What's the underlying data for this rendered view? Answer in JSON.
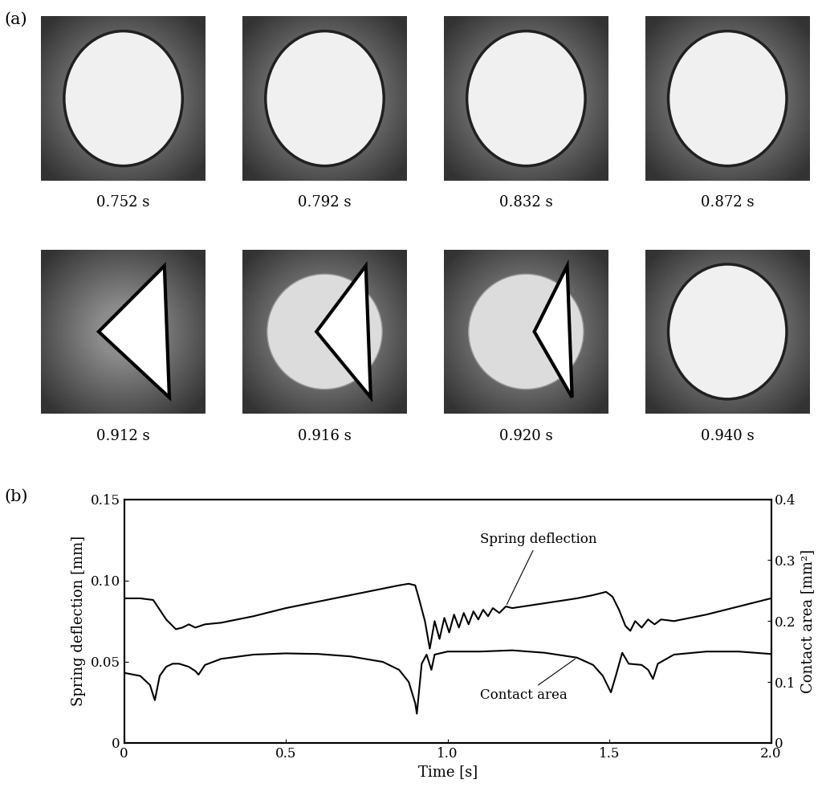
{
  "panel_a": {
    "label": "(a)",
    "frames": [
      "0.752 s",
      "0.792 s",
      "0.832 s",
      "0.872 s",
      "0.912 s",
      "0.916 s",
      "0.920 s",
      "0.940 s"
    ]
  },
  "chart_data": {
    "type": "line",
    "panel_label": "(b)",
    "x_label": "Time [s]",
    "y_label": "Spring deflection [mm]",
    "y2_label": "Contact area [mm²]",
    "xlim": [
      0,
      2.0
    ],
    "xticks": [
      0,
      0.5,
      1.0,
      1.5,
      2.0
    ],
    "ylim": [
      0,
      0.15
    ],
    "yticks": [
      0,
      0.05,
      {
        "value": 0.1,
        "label": "0.10"
      },
      0.15
    ],
    "y2lim": [
      0,
      0.4
    ],
    "y2ticks": [
      0,
      0.1,
      0.2,
      0.3,
      0.4
    ],
    "grid": false,
    "series": [
      {
        "name": "Spring deflection",
        "color": "#000000",
        "axis": "y",
        "x": [
          0,
          0.05,
          0.09,
          0.1,
          0.13,
          0.16,
          0.18,
          0.2,
          0.22,
          0.25,
          0.3,
          0.4,
          0.5,
          0.6,
          0.7,
          0.8,
          0.85,
          0.88,
          0.9,
          0.91,
          0.93,
          0.945,
          0.96,
          0.975,
          0.99,
          1.005,
          1.02,
          1.035,
          1.05,
          1.065,
          1.08,
          1.095,
          1.11,
          1.125,
          1.14,
          1.16,
          1.18,
          1.2,
          1.3,
          1.4,
          1.45,
          1.49,
          1.51,
          1.53,
          1.55,
          1.565,
          1.58,
          1.6,
          1.62,
          1.64,
          1.66,
          1.7,
          1.8,
          1.9,
          2.0
        ],
        "values": [
          0.089,
          0.089,
          0.088,
          0.085,
          0.076,
          0.07,
          0.071,
          0.073,
          0.071,
          0.073,
          0.074,
          0.078,
          0.083,
          0.087,
          0.091,
          0.095,
          0.097,
          0.098,
          0.097,
          0.09,
          0.075,
          0.058,
          0.075,
          0.064,
          0.077,
          0.068,
          0.079,
          0.071,
          0.08,
          0.073,
          0.081,
          0.076,
          0.082,
          0.078,
          0.083,
          0.08,
          0.084,
          0.083,
          0.086,
          0.089,
          0.091,
          0.093,
          0.09,
          0.082,
          0.072,
          0.069,
          0.075,
          0.071,
          0.076,
          0.073,
          0.076,
          0.075,
          0.079,
          0.084,
          0.089
        ]
      },
      {
        "name": "Contact area",
        "color": "#000000",
        "axis": "y2",
        "x": [
          0,
          0.05,
          0.08,
          0.095,
          0.11,
          0.13,
          0.15,
          0.17,
          0.2,
          0.22,
          0.23,
          0.25,
          0.3,
          0.4,
          0.5,
          0.6,
          0.7,
          0.8,
          0.85,
          0.88,
          0.9,
          0.905,
          0.92,
          0.935,
          0.95,
          0.96,
          1.0,
          1.1,
          1.2,
          1.3,
          1.4,
          1.45,
          1.48,
          1.505,
          1.52,
          1.54,
          1.56,
          1.6,
          1.62,
          1.635,
          1.65,
          1.7,
          1.8,
          1.9,
          2.0
        ],
        "values": [
          0.115,
          0.11,
          0.095,
          0.07,
          0.11,
          0.125,
          0.13,
          0.13,
          0.125,
          0.118,
          0.112,
          0.128,
          0.138,
          0.145,
          0.147,
          0.146,
          0.142,
          0.133,
          0.12,
          0.1,
          0.065,
          0.048,
          0.13,
          0.145,
          0.12,
          0.145,
          0.15,
          0.15,
          0.152,
          0.148,
          0.14,
          0.128,
          0.11,
          0.083,
          0.11,
          0.148,
          0.13,
          0.128,
          0.12,
          0.105,
          0.13,
          0.145,
          0.15,
          0.15,
          0.146
        ]
      }
    ]
  }
}
